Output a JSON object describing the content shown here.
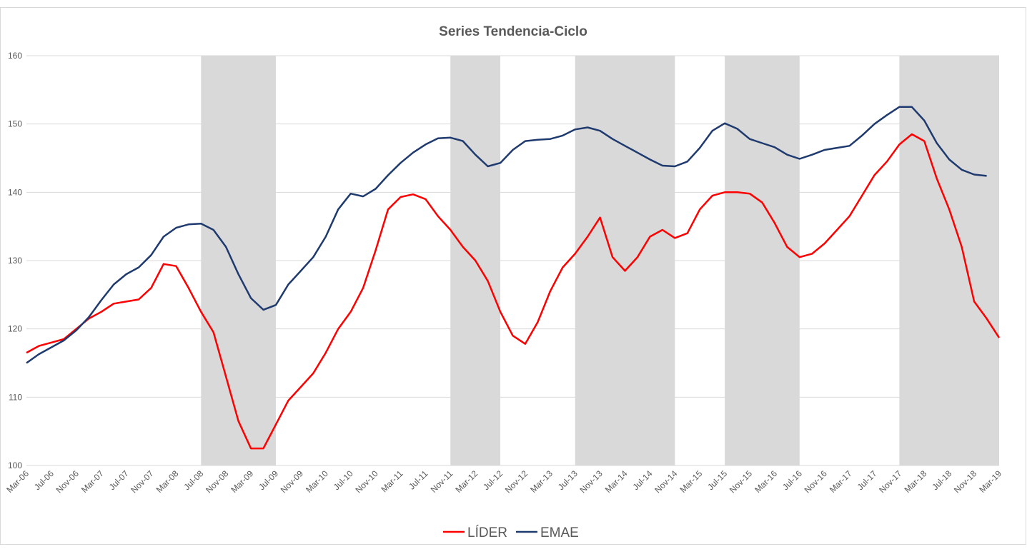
{
  "chart_data": {
    "type": "line",
    "title": "Series Tendencia-Ciclo",
    "categories": [
      "Mar-06",
      null,
      "Jul-06",
      null,
      "Nov-06",
      null,
      "Mar-07",
      null,
      "Jul-07",
      null,
      "Nov-07",
      null,
      "Mar-08",
      null,
      "Jul-08",
      null,
      "Nov-08",
      null,
      "Mar-09",
      null,
      "Jul-09",
      null,
      "Nov-09",
      null,
      "Mar-10",
      null,
      "Jul-10",
      null,
      "Nov-10",
      null,
      "Mar-11",
      null,
      "Jul-11",
      null,
      "Nov-11",
      null,
      "Mar-12",
      null,
      "Jul-12",
      null,
      "Nov-12",
      null,
      "Mar-13",
      null,
      "Jul-13",
      null,
      "Nov-13",
      null,
      "Mar-14",
      null,
      "Jul-14",
      null,
      "Nov-14",
      null,
      "Mar-15",
      null,
      "Jul-15",
      null,
      "Nov-15",
      null,
      "Mar-16",
      null,
      "Jul-16",
      null,
      "Nov-16",
      null,
      "Mar-17",
      null,
      "Jul-17",
      null,
      "Nov-17",
      null,
      "Mar-18",
      null,
      "Jul-18",
      null,
      "Nov-18",
      null,
      "Mar-19"
    ],
    "series": [
      {
        "name": "LÍDER",
        "color": "#ff0000",
        "values": [
          116.5,
          117.5,
          118,
          118.5,
          120,
          121.5,
          122.5,
          123.7,
          124,
          124.3,
          126,
          129.5,
          129.2,
          126,
          122.5,
          119.5,
          113,
          106.5,
          102.5,
          102.5,
          106,
          109.5,
          111.5,
          113.5,
          116.5,
          120,
          122.5,
          126,
          131.5,
          137.5,
          139.3,
          139.7,
          139,
          136.5,
          134.5,
          132,
          130,
          127,
          122.5,
          119,
          117.8,
          121,
          125.5,
          129,
          131,
          133.5,
          136.3,
          130.5,
          128.5,
          130.5,
          133.5,
          134.5,
          133.3,
          134,
          137.5,
          139.5,
          140,
          140,
          139.8,
          138.5,
          135.5,
          132,
          130.5,
          131,
          132.5,
          134.5,
          136.5,
          139.5,
          142.5,
          144.5,
          147,
          148.5,
          147.5,
          142,
          137.5,
          132,
          124,
          121.5,
          118.7
        ]
      },
      {
        "name": "EMAE",
        "color": "#1f3a6e",
        "values": [
          115,
          116.3,
          117.3,
          118.3,
          119.8,
          121.7,
          124.2,
          126.5,
          128,
          129,
          130.8,
          133.5,
          134.8,
          135.3,
          135.4,
          134.5,
          132,
          128,
          124.5,
          122.8,
          123.5,
          126.5,
          128.5,
          130.5,
          133.5,
          137.5,
          139.8,
          139.4,
          140.5,
          142.5,
          144.3,
          145.8,
          147,
          147.9,
          148,
          147.5,
          145.5,
          143.8,
          144.3,
          146.2,
          147.5,
          147.7,
          147.8,
          148.3,
          149.2,
          149.5,
          149,
          147.8,
          146.8,
          145.8,
          144.8,
          143.9,
          143.8,
          144.5,
          146.5,
          149,
          150.1,
          149.3,
          147.8,
          147.2,
          146.6,
          145.5,
          144.9,
          145.5,
          146.2,
          146.5,
          146.8,
          148.3,
          150,
          151.3,
          152.5,
          152.5,
          150.5,
          147.2,
          144.8,
          143.3,
          142.6,
          142.4,
          null
        ]
      }
    ],
    "shaded_bands": [
      [
        "Jul-08",
        "Jul-09"
      ],
      [
        "Nov-11",
        "Jul-12"
      ],
      [
        "Jul-13",
        "Nov-14"
      ],
      [
        "Jul-15",
        "Jul-16"
      ],
      [
        "Nov-17",
        "Mar-19"
      ]
    ],
    "band_color": "#d9d9d9",
    "ylim": [
      100,
      160
    ],
    "yticks": [
      100,
      110,
      120,
      130,
      140,
      150,
      160
    ],
    "grid": true,
    "legend": "bottom"
  }
}
